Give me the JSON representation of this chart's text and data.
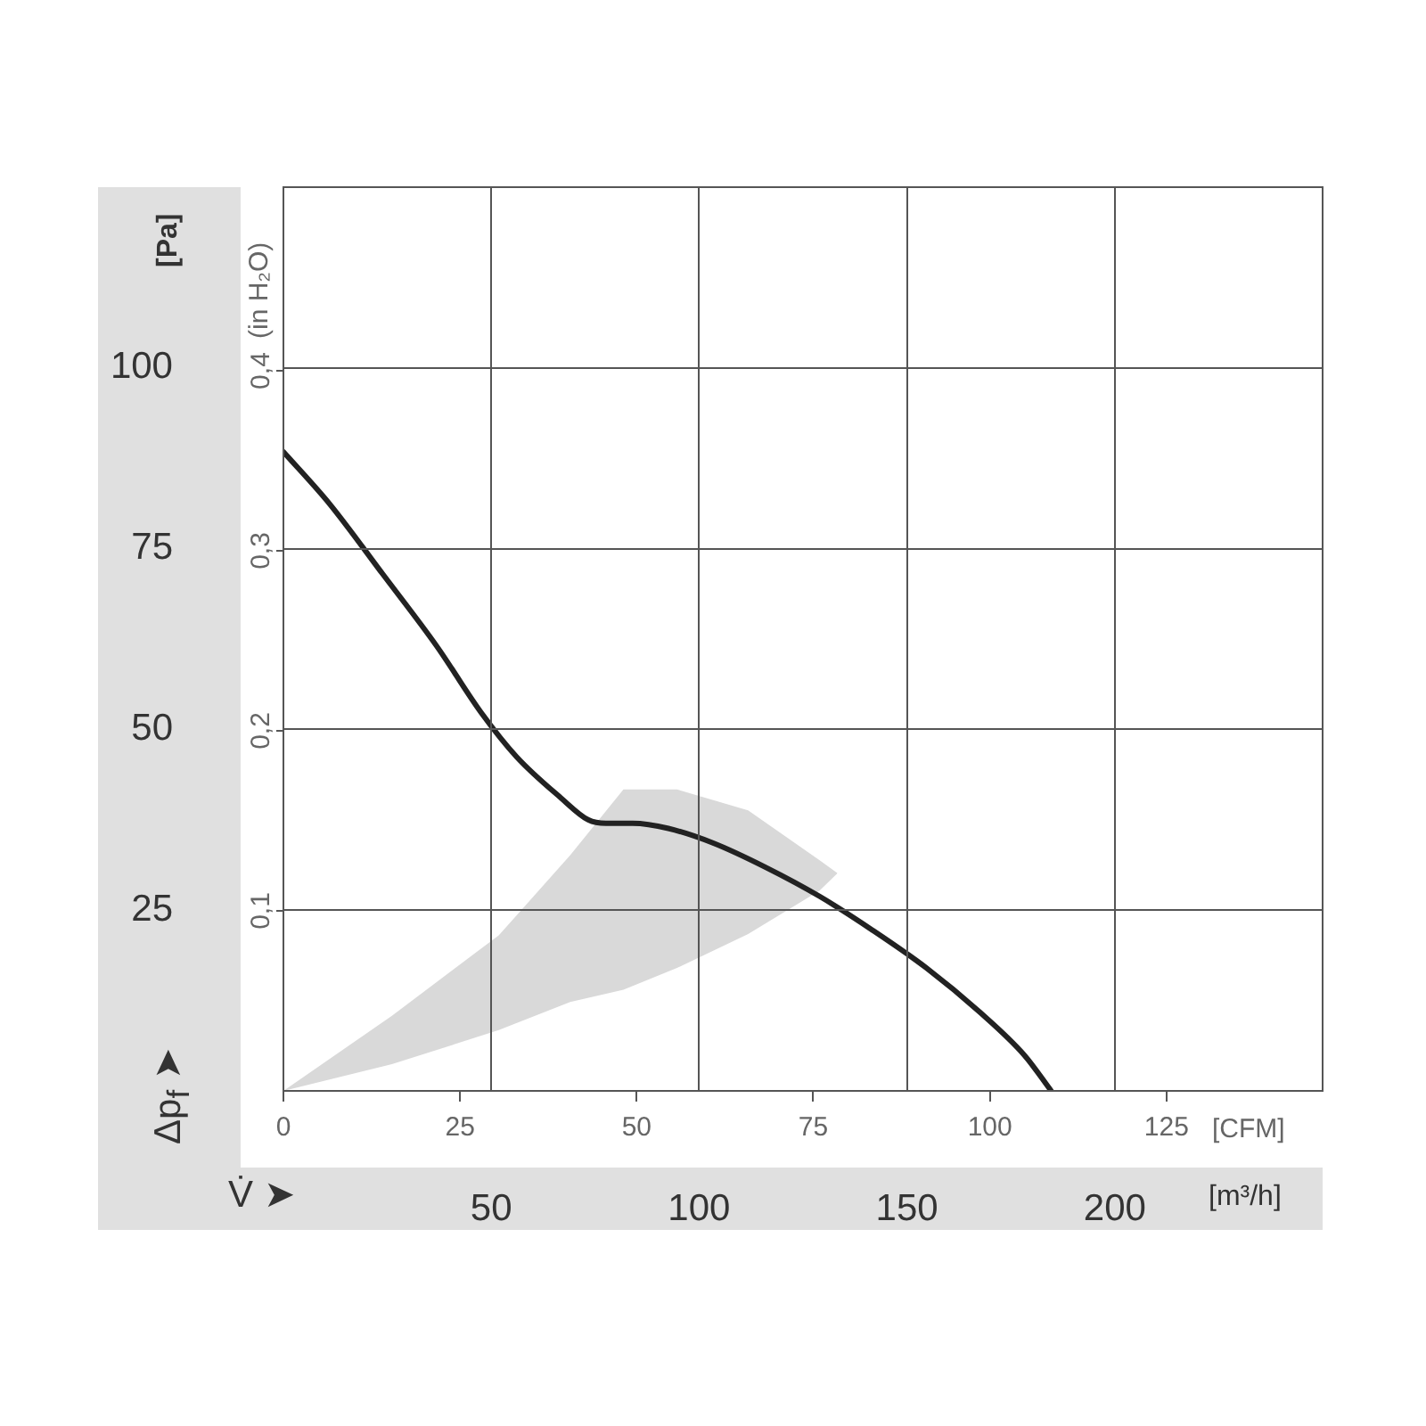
{
  "chart_data": {
    "type": "line",
    "ylabel": "[Pa]",
    "y2label": "(in H₂O)",
    "xlabel": "[m³/h]",
    "x2label": "[CFM]",
    "annotations": [
      "Δp$_{f}$ ➤",
      "V̇ ➤"
    ],
    "x": [
      0,
      11.1,
      24.0,
      36.9,
      47.6,
      56.1,
      66.8,
      73.3,
      77.6,
      84.0,
      92.6,
      103.3,
      116.1,
      129.0,
      141.8,
      154.7,
      167.5,
      178.3,
      184.7
    ],
    "series": [
      {
        "color": "#222222",
        "values": [
          88.4,
          81.2,
          71.4,
          61.5,
          52.3,
          46.2,
          40.5,
          37.5,
          37.0,
          37.0,
          36.3,
          34.3,
          30.9,
          26.9,
          22.2,
          17.0,
          10.9,
          4.9,
          0
        ]
      },
      {
        "type": "area",
        "color": "#d9d9d9",
        "x": [
          0,
          26.1,
          51.8,
          69.0,
          81.8,
          94.7,
          111.8,
          129.0,
          133.3
        ],
        "values": [
          null,
          null,
          null,
          null,
          null,
          null,
          null,
          null,
          null
        ],
        "upper": [
          0,
          10.4,
          21.5,
          32.6,
          41.7,
          41.7,
          38.8,
          31.9,
          30.1
        ],
        "lower": [
          0,
          3.7,
          8.4,
          12.3,
          14.0,
          17.0,
          21.7,
          27.7,
          30.1
        ]
      }
    ],
    "xlim": [
      0,
      250
    ],
    "xticks": [
      50,
      100,
      150,
      200
    ],
    "x2lim": [
      0,
      147.1
    ],
    "x2ticks": [
      0,
      25,
      50,
      75,
      100,
      125
    ],
    "ylim": [
      0,
      125
    ],
    "yticks": [
      25,
      50,
      75,
      100
    ],
    "y2lim": [
      0,
      0.502
    ],
    "y2ticks": [
      {
        "value": 0.1,
        "label": "0,1"
      },
      {
        "value": 0.2,
        "label": "0,2"
      },
      {
        "value": 0.3,
        "label": "0,3"
      },
      {
        "value": 0.4,
        "label": "0,4"
      }
    ],
    "grid": true,
    "legend": false,
    "marker": "none",
    "line_style": "solid"
  }
}
